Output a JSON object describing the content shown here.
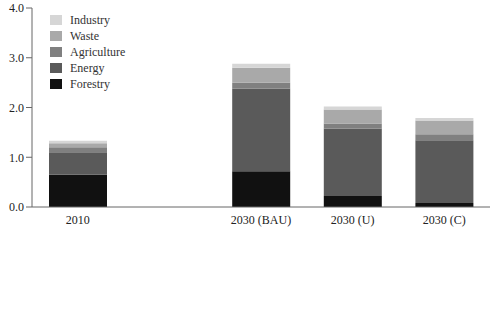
{
  "chart_data": {
    "type": "bar",
    "stacked": true,
    "legend": "upper left",
    "grid": false,
    "categories": [
      "2010",
      null,
      "2030 (BAU)",
      "2030 (U)",
      "2030 (C)"
    ],
    "ylim": [
      0,
      4
    ],
    "yticks": [
      {
        "value": 0,
        "label": "0.0"
      },
      {
        "value": 1,
        "label": "1.0"
      },
      {
        "value": 2,
        "label": "2.0"
      },
      {
        "value": 3,
        "label": "3.0"
      },
      {
        "value": 4,
        "label": "4.0"
      }
    ],
    "series": [
      {
        "name": "Forestry",
        "color": "#111111",
        "values": [
          0.65,
          null,
          0.72,
          0.22,
          0.08
        ]
      },
      {
        "name": "Energy",
        "color": "#5a5a5a",
        "values": [
          0.45,
          null,
          1.66,
          1.36,
          1.26
        ]
      },
      {
        "name": "Agriculture",
        "color": "#808080",
        "values": [
          0.1,
          null,
          0.12,
          0.1,
          0.12
        ]
      },
      {
        "name": "Waste",
        "color": "#a9a9a9",
        "values": [
          0.08,
          null,
          0.3,
          0.28,
          0.28
        ]
      },
      {
        "name": "Industry",
        "color": "#d6d6d6",
        "values": [
          0.05,
          null,
          0.08,
          0.06,
          0.05
        ]
      }
    ]
  }
}
